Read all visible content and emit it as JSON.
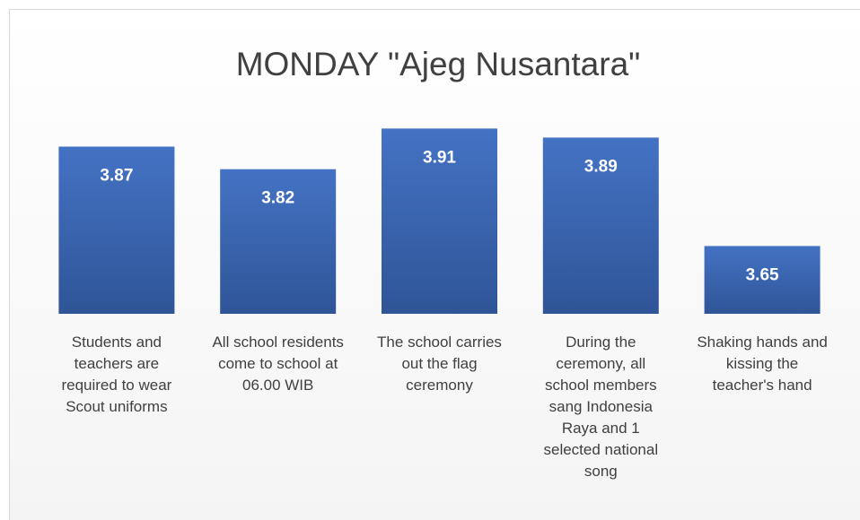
{
  "chart_data": {
    "type": "bar",
    "title": "MONDAY \"Ajeg Nusantara\"",
    "categories": [
      "Students and teachers are required to wear Scout uniforms",
      "All school residents come to school at 06.00 WIB",
      "The school carries out the flag ceremony",
      "During the ceremony, all school members sang Indonesia Raya and 1 selected national song",
      "Shaking hands and kissing the teacher's hand"
    ],
    "values": [
      3.87,
      3.82,
      3.91,
      3.89,
      3.65
    ],
    "color": "#4472c4",
    "ylim": [
      3.5,
      4.0
    ]
  }
}
